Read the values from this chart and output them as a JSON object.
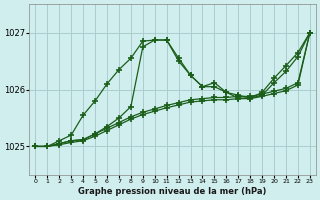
{
  "title": "Graphe pression niveau de la mer (hPa)",
  "background_color": "#d0eeee",
  "grid_color": "#aacccc",
  "line_color": "#1a5e1a",
  "x_labels": [
    "0",
    "1",
    "2",
    "3",
    "4",
    "5",
    "6",
    "7",
    "8",
    "9",
    "10",
    "11",
    "12",
    "13",
    "14",
    "15",
    "16",
    "17",
    "18",
    "19",
    "20",
    "21",
    "22",
    "23"
  ],
  "ylim": [
    1024.5,
    1027.5
  ],
  "yticks": [
    1025,
    1026,
    1027
  ],
  "series": {
    "main": [
      1025.0,
      1025.0,
      1025.1,
      1025.2,
      1025.5,
      1025.8,
      1026.1,
      1026.35,
      1026.6,
      1026.85,
      1026.85,
      1026.85,
      1026.5,
      1026.2,
      1026.0,
      1026.1,
      1025.95,
      1025.85,
      1025.85,
      1025.9,
      1026.1,
      1026.3,
      1026.55,
      1027.0
    ],
    "line2": [
      1025.0,
      1025.0,
      1025.05,
      1025.1,
      1025.1,
      1025.2,
      1025.3,
      1025.45,
      1025.6,
      1026.8,
      1026.85,
      1026.9,
      1026.5,
      1026.25,
      1026.05,
      1026.05,
      1025.95,
      1025.9,
      1025.85,
      1025.95,
      1026.2,
      1026.4,
      1026.65,
      1027.0
    ],
    "line3": [
      1025.0,
      1025.0,
      1025.05,
      1025.1,
      1025.1,
      1025.2,
      1025.3,
      1025.4,
      1025.5,
      1025.6,
      1025.65,
      1025.7,
      1025.75,
      1025.8,
      1025.82,
      1025.85,
      1025.85,
      1025.87,
      1025.87,
      1025.9,
      1025.95,
      1026.0,
      1026.1,
      1027.0
    ],
    "line4": [
      1025.0,
      1025.0,
      1025.05,
      1025.1,
      1025.1,
      1025.2,
      1025.3,
      1025.4,
      1025.5,
      1025.6,
      1025.65,
      1025.7,
      1025.75,
      1025.8,
      1025.82,
      1025.85,
      1025.85,
      1025.87,
      1025.87,
      1025.9,
      1025.95,
      1026.0,
      1026.1,
      1027.0
    ]
  }
}
